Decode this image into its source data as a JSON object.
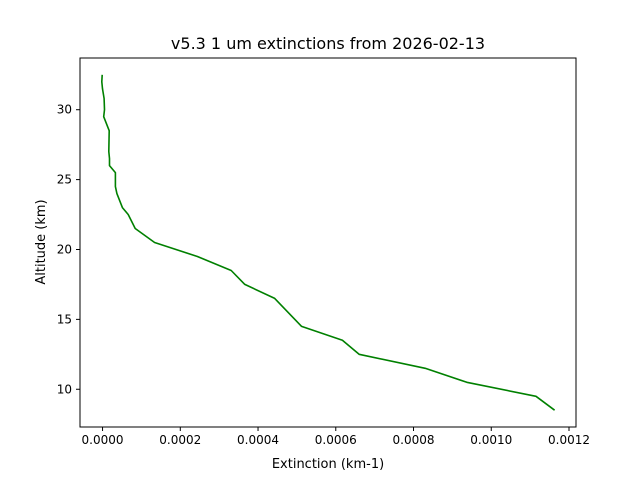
{
  "chart_data": {
    "type": "line",
    "title": "v5.3 1 um extinctions from 2026-02-13",
    "xlabel": "Extinction (km-1)",
    "ylabel": "Altitude (km)",
    "xlim": [
      -5.8e-05,
      0.001218
    ],
    "ylim": [
      7.3,
      33.7
    ],
    "x_ticks": [
      0.0,
      0.0002,
      0.0004,
      0.0006,
      0.0008,
      0.001,
      0.0012
    ],
    "x_tick_labels": [
      "0.0000",
      "0.0002",
      "0.0004",
      "0.0006",
      "0.0008",
      "0.0010",
      "0.0012"
    ],
    "y_ticks": [
      10,
      15,
      20,
      25,
      30
    ],
    "y_tick_labels": [
      "10",
      "15",
      "20",
      "25",
      "30"
    ],
    "grid": false,
    "series_color": "#008000",
    "series": [
      {
        "x": [
          0.001163,
          0.001115,
          0.000937,
          0.00083,
          0.00066,
          0.000617,
          0.000512,
          0.000443,
          0.000366,
          0.000331,
          0.000244,
          0.000134,
          8.4e-05,
          6.6e-05,
          5.1e-05,
          3.7e-05,
          3.3e-05,
          3.3e-05,
          1.8e-05,
          1.8e-05,
          1.6e-05,
          1.7e-05,
          3e-06,
          5e-06,
          4e-06,
          0.0,
          -2e-06,
          -1e-06
        ],
        "y": [
          8.5,
          9.5,
          10.5,
          11.5,
          12.5,
          13.5,
          14.5,
          16.5,
          17.5,
          18.5,
          19.5,
          20.5,
          21.5,
          22.5,
          23.0,
          24.0,
          24.5,
          25.5,
          26.0,
          26.5,
          27.0,
          28.5,
          29.5,
          30.0,
          30.8,
          31.5,
          32.0,
          32.5
        ]
      }
    ]
  }
}
